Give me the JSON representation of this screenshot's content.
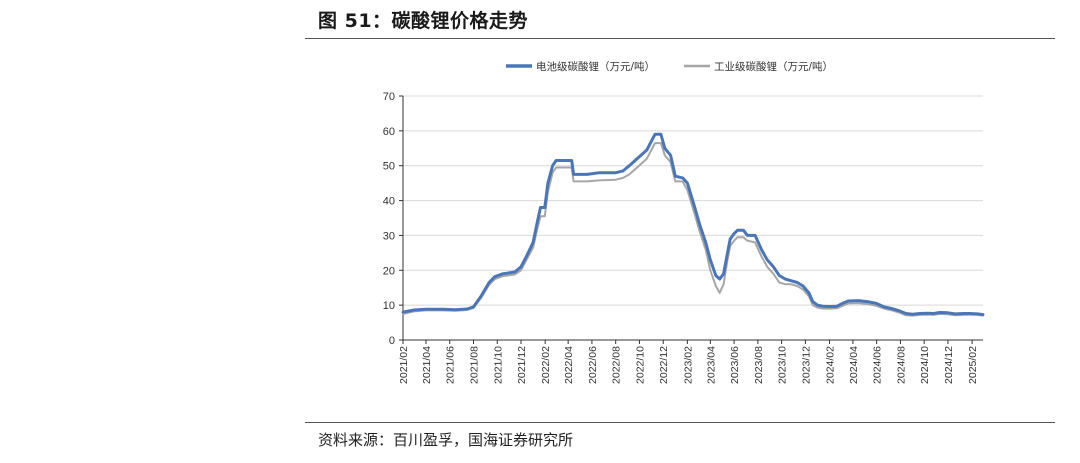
{
  "figure": {
    "title": "图 51：碳酸锂价格走势",
    "source": "资料来源：百川盈孚，国海证券研究所"
  },
  "colors": {
    "battery": "#4a76b8",
    "industrial": "#a6a6a6",
    "grid": "#d9d9d9",
    "axis": "#333333"
  },
  "chart_data": {
    "type": "line",
    "title": "",
    "xlabel": "",
    "ylabel": "",
    "ylim": [
      0,
      70
    ],
    "yticks": [
      0,
      10,
      20,
      30,
      40,
      50,
      60,
      70
    ],
    "grid": "horizontal",
    "legend": "top-center",
    "x_range": [
      "2021-02",
      "2025-03"
    ],
    "xtick_labels": [
      "2021/02",
      "2021/04",
      "2021/06",
      "2021/08",
      "2021/10",
      "2021/12",
      "2022/02",
      "2022/04",
      "2022/06",
      "2022/08",
      "2022/10",
      "2022/12",
      "2023/02",
      "2023/04",
      "2023/06",
      "2023/08",
      "2023/10",
      "2023/12",
      "2024/02",
      "2024/04",
      "2024/06",
      "2024/08",
      "2024/10",
      "2024/12",
      "2025/02"
    ],
    "series": [
      {
        "name": "电池级碳酸锂（万元/吨）",
        "color": "#4a76b8",
        "points": [
          [
            "2021-02-01",
            8.0
          ],
          [
            "2021-03-01",
            8.6
          ],
          [
            "2021-04-01",
            8.8
          ],
          [
            "2021-05-15",
            8.8
          ],
          [
            "2021-06-15",
            8.7
          ],
          [
            "2021-07-15",
            8.9
          ],
          [
            "2021-08-01",
            9.5
          ],
          [
            "2021-08-20",
            12.5
          ],
          [
            "2021-09-10",
            16.5
          ],
          [
            "2021-09-25",
            18.2
          ],
          [
            "2021-10-15",
            19.0
          ],
          [
            "2021-11-15",
            19.5
          ],
          [
            "2021-12-01",
            21.0
          ],
          [
            "2021-12-15",
            24.0
          ],
          [
            "2022-01-01",
            28.0
          ],
          [
            "2022-01-12",
            34.0
          ],
          [
            "2022-01-20",
            38.0
          ],
          [
            "2022-01-31",
            38.0
          ],
          [
            "2022-02-08",
            45.0
          ],
          [
            "2022-02-20",
            50.0
          ],
          [
            "2022-03-01",
            51.5
          ],
          [
            "2022-04-10",
            51.5
          ],
          [
            "2022-04-15",
            47.5
          ],
          [
            "2022-05-20",
            47.5
          ],
          [
            "2022-06-20",
            48.0
          ],
          [
            "2022-08-01",
            48.0
          ],
          [
            "2022-08-20",
            48.5
          ],
          [
            "2022-09-05",
            50.0
          ],
          [
            "2022-09-25",
            52.0
          ],
          [
            "2022-10-20",
            54.5
          ],
          [
            "2022-11-10",
            59.0
          ],
          [
            "2022-11-25",
            59.0
          ],
          [
            "2022-12-05",
            55.0
          ],
          [
            "2022-12-20",
            53.0
          ],
          [
            "2023-01-01",
            47.0
          ],
          [
            "2023-01-20",
            46.5
          ],
          [
            "2023-02-01",
            45.0
          ],
          [
            "2023-02-20",
            38.0
          ],
          [
            "2023-03-05",
            33.0
          ],
          [
            "2023-03-20",
            28.0
          ],
          [
            "2023-04-01",
            23.0
          ],
          [
            "2023-04-15",
            18.5
          ],
          [
            "2023-04-25",
            17.5
          ],
          [
            "2023-05-05",
            19.0
          ],
          [
            "2023-05-15",
            25.0
          ],
          [
            "2023-05-22",
            29.0
          ],
          [
            "2023-06-01",
            30.5
          ],
          [
            "2023-06-10",
            31.5
          ],
          [
            "2023-06-25",
            31.5
          ],
          [
            "2023-07-05",
            30.0
          ],
          [
            "2023-07-25",
            30.0
          ],
          [
            "2023-08-10",
            26.0
          ],
          [
            "2023-08-25",
            23.0
          ],
          [
            "2023-09-10",
            21.0
          ],
          [
            "2023-09-25",
            18.5
          ],
          [
            "2023-10-10",
            17.5
          ],
          [
            "2023-10-25",
            17.0
          ],
          [
            "2023-11-10",
            16.5
          ],
          [
            "2023-11-25",
            15.5
          ],
          [
            "2023-12-10",
            13.5
          ],
          [
            "2023-12-20",
            11.0
          ],
          [
            "2024-01-01",
            10.0
          ],
          [
            "2024-01-15",
            9.7
          ],
          [
            "2024-02-01",
            9.6
          ],
          [
            "2024-02-20",
            9.7
          ],
          [
            "2024-03-05",
            10.5
          ],
          [
            "2024-03-20",
            11.2
          ],
          [
            "2024-04-15",
            11.3
          ],
          [
            "2024-05-10",
            11.0
          ],
          [
            "2024-05-31",
            10.5
          ],
          [
            "2024-06-20",
            9.5
          ],
          [
            "2024-07-10",
            9.0
          ],
          [
            "2024-07-31",
            8.3
          ],
          [
            "2024-08-15",
            7.6
          ],
          [
            "2024-09-01",
            7.4
          ],
          [
            "2024-09-20",
            7.6
          ],
          [
            "2024-10-10",
            7.7
          ],
          [
            "2024-10-25",
            7.6
          ],
          [
            "2024-11-10",
            7.9
          ],
          [
            "2024-12-01",
            7.8
          ],
          [
            "2024-12-20",
            7.5
          ],
          [
            "2025-01-10",
            7.6
          ],
          [
            "2025-01-25",
            7.6
          ],
          [
            "2025-02-15",
            7.5
          ],
          [
            "2025-03-01",
            7.3
          ]
        ]
      },
      {
        "name": "工业级碳酸锂（万元/吨）",
        "color": "#a6a6a6",
        "points": [
          [
            "2021-02-01",
            7.5
          ],
          [
            "2021-03-01",
            8.2
          ],
          [
            "2021-04-01",
            8.5
          ],
          [
            "2021-05-15",
            8.5
          ],
          [
            "2021-06-15",
            8.4
          ],
          [
            "2021-07-15",
            8.6
          ],
          [
            "2021-08-01",
            9.2
          ],
          [
            "2021-08-20",
            12.0
          ],
          [
            "2021-09-10",
            15.8
          ],
          [
            "2021-09-25",
            17.5
          ],
          [
            "2021-10-15",
            18.3
          ],
          [
            "2021-11-15",
            18.8
          ],
          [
            "2021-12-01",
            20.0
          ],
          [
            "2021-12-15",
            23.0
          ],
          [
            "2022-01-01",
            26.5
          ],
          [
            "2022-01-12",
            32.0
          ],
          [
            "2022-01-20",
            35.5
          ],
          [
            "2022-01-31",
            35.5
          ],
          [
            "2022-02-08",
            42.5
          ],
          [
            "2022-02-20",
            48.0
          ],
          [
            "2022-03-01",
            49.5
          ],
          [
            "2022-04-10",
            49.5
          ],
          [
            "2022-04-15",
            45.5
          ],
          [
            "2022-05-20",
            45.5
          ],
          [
            "2022-06-20",
            45.8
          ],
          [
            "2022-08-01",
            46.0
          ],
          [
            "2022-08-20",
            46.5
          ],
          [
            "2022-09-05",
            47.5
          ],
          [
            "2022-09-25",
            49.5
          ],
          [
            "2022-10-20",
            52.0
          ],
          [
            "2022-11-10",
            56.5
          ],
          [
            "2022-11-25",
            56.5
          ],
          [
            "2022-12-05",
            53.0
          ],
          [
            "2022-12-20",
            51.0
          ],
          [
            "2023-01-01",
            45.5
          ],
          [
            "2023-01-20",
            45.5
          ],
          [
            "2023-02-01",
            43.0
          ],
          [
            "2023-02-20",
            36.0
          ],
          [
            "2023-03-05",
            31.0
          ],
          [
            "2023-03-20",
            26.0
          ],
          [
            "2023-04-01",
            20.0
          ],
          [
            "2023-04-15",
            15.5
          ],
          [
            "2023-04-25",
            13.5
          ],
          [
            "2023-05-05",
            16.0
          ],
          [
            "2023-05-15",
            23.0
          ],
          [
            "2023-05-22",
            27.0
          ],
          [
            "2023-06-01",
            28.5
          ],
          [
            "2023-06-10",
            29.5
          ],
          [
            "2023-06-25",
            29.5
          ],
          [
            "2023-07-05",
            28.5
          ],
          [
            "2023-07-25",
            28.0
          ],
          [
            "2023-08-10",
            24.0
          ],
          [
            "2023-08-25",
            21.0
          ],
          [
            "2023-09-10",
            19.0
          ],
          [
            "2023-09-25",
            16.5
          ],
          [
            "2023-10-10",
            16.0
          ],
          [
            "2023-10-25",
            16.0
          ],
          [
            "2023-11-10",
            15.5
          ],
          [
            "2023-11-25",
            14.5
          ],
          [
            "2023-12-10",
            12.5
          ],
          [
            "2023-12-20",
            10.0
          ],
          [
            "2024-01-01",
            9.3
          ],
          [
            "2024-01-15",
            9.0
          ],
          [
            "2024-02-01",
            9.0
          ],
          [
            "2024-02-20",
            9.1
          ],
          [
            "2024-03-05",
            9.8
          ],
          [
            "2024-03-20",
            10.5
          ],
          [
            "2024-04-15",
            10.6
          ],
          [
            "2024-05-10",
            10.3
          ],
          [
            "2024-05-31",
            9.8
          ],
          [
            "2024-06-20",
            9.0
          ],
          [
            "2024-07-10",
            8.5
          ],
          [
            "2024-07-31",
            7.8
          ],
          [
            "2024-08-15",
            7.1
          ],
          [
            "2024-09-01",
            7.0
          ],
          [
            "2024-09-20",
            7.2
          ],
          [
            "2024-10-10",
            7.3
          ],
          [
            "2024-10-25",
            7.2
          ],
          [
            "2024-11-10",
            7.5
          ],
          [
            "2024-12-01",
            7.4
          ],
          [
            "2024-12-20",
            7.1
          ],
          [
            "2025-01-10",
            7.2
          ],
          [
            "2025-01-25",
            7.3
          ],
          [
            "2025-02-15",
            7.2
          ],
          [
            "2025-03-01",
            7.0
          ]
        ]
      }
    ]
  }
}
